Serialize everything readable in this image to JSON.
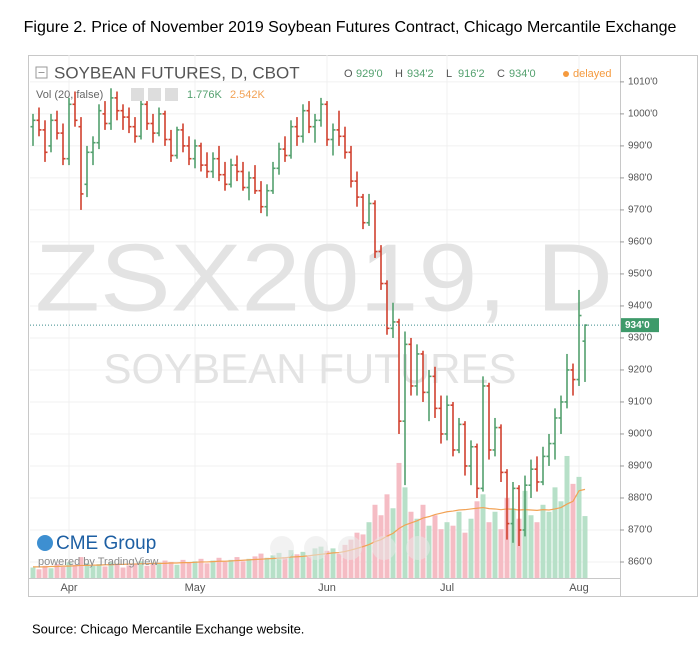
{
  "chart_data": {
    "type": "ohlc",
    "title": "Figure 2. Price of November 2019 Soybean Futures Contract, Chicago Mercantile Exchange",
    "source": "Source:  Chicago Mercantile Exchange website.",
    "symbol_title": "SOYBEAN FUTURES, D, CBOT",
    "ohlc_legend": [
      {
        "key": "O",
        "value": "929'0"
      },
      {
        "key": "H",
        "value": "934'2"
      },
      {
        "key": "L",
        "value": "916'2"
      },
      {
        "key": "C",
        "value": "934'0"
      }
    ],
    "status": "delayed",
    "volume_title": "Vol (20, false)",
    "volume_last": "1.776K",
    "volume_ma_last": "2.542K",
    "watermark": "ZSX2019, D",
    "watermark_subtitle": "SOYBEAN FUTURES",
    "logo": "CME Group",
    "powered_by": "powered by TradingView",
    "up_color": "#53a06e",
    "down_color": "#d0412f",
    "volume_up_color": "#b7e0c8",
    "volume_down_color": "#f5bcc4",
    "volume_ma_color": "#f2a255",
    "categories": [
      null,
      null,
      null,
      null,
      null,
      null,
      "Apr",
      null,
      null,
      null,
      null,
      null,
      null,
      null,
      null,
      null,
      null,
      null,
      null,
      null,
      null,
      null,
      null,
      null,
      null,
      null,
      null,
      "May",
      null,
      null,
      null,
      null,
      null,
      null,
      null,
      null,
      null,
      null,
      null,
      null,
      null,
      null,
      null,
      null,
      null,
      null,
      null,
      null,
      null,
      "Jun",
      null,
      null,
      null,
      null,
      null,
      null,
      null,
      null,
      null,
      null,
      null,
      null,
      null,
      null,
      null,
      null,
      null,
      null,
      null,
      "Jul",
      null,
      null,
      null,
      null,
      null,
      null,
      null,
      null,
      null,
      null,
      null,
      null,
      null,
      null,
      null,
      null,
      null,
      null,
      null,
      null,
      null,
      "Aug",
      null
    ],
    "open": [
      996,
      998,
      995,
      990,
      998,
      994,
      986,
      1003,
      996,
      978,
      988,
      991,
      1000,
      997,
      1005,
      1001,
      999,
      996,
      993,
      1003,
      997,
      994,
      1000,
      992,
      987,
      995,
      990,
      986,
      990,
      984,
      982,
      986,
      981,
      978,
      984,
      982,
      977,
      980,
      976,
      971,
      976,
      983,
      989,
      987,
      996,
      993,
      1001,
      996,
      998,
      1003,
      992,
      995,
      993,
      988,
      979,
      974,
      966,
      972,
      957,
      947,
      933,
      935,
      904,
      928,
      915,
      925,
      913,
      918,
      908,
      900,
      909,
      895,
      903,
      890,
      896,
      883,
      915,
      895,
      902,
      888,
      872,
      883,
      870,
      884,
      889,
      885,
      893,
      897,
      905,
      910,
      920,
      917,
      929
    ],
    "high": [
      1000,
      1002,
      998,
      1000,
      1001,
      997,
      1005,
      1007,
      999,
      990,
      993,
      1003,
      1004,
      1008,
      1007,
      1003,
      1002,
      999,
      1005,
      1004,
      1000,
      1002,
      1001,
      995,
      996,
      997,
      993,
      992,
      991,
      988,
      988,
      990,
      985,
      986,
      987,
      985,
      982,
      984,
      979,
      978,
      985,
      991,
      993,
      998,
      999,
      1003,
      1004,
      1000,
      1005,
      1004,
      997,
      1001,
      996,
      990,
      982,
      975,
      975,
      973,
      959,
      948,
      941,
      936,
      932,
      930,
      928,
      926,
      920,
      921,
      912,
      912,
      910,
      905,
      904,
      898,
      897,
      918,
      916,
      905,
      903,
      889,
      885,
      884,
      887,
      892,
      893,
      896,
      900,
      908,
      912,
      925,
      922,
      945,
      934.25
    ],
    "low": [
      990,
      993,
      985,
      988,
      992,
      984,
      984,
      996,
      970,
      974,
      984,
      989,
      995,
      995,
      998,
      995,
      994,
      991,
      992,
      995,
      991,
      993,
      990,
      985,
      986,
      988,
      984,
      983,
      982,
      980,
      980,
      979,
      976,
      977,
      979,
      976,
      973,
      975,
      969,
      968,
      975,
      981,
      985,
      986,
      990,
      991,
      994,
      991,
      996,
      990,
      987,
      990,
      986,
      977,
      971,
      964,
      965,
      955,
      945,
      931,
      930,
      900,
      884,
      912,
      912,
      910,
      904,
      905,
      897,
      898,
      893,
      894,
      887,
      884,
      880,
      882,
      892,
      893,
      885,
      867,
      866,
      865,
      868,
      880,
      882,
      884,
      890,
      892,
      900,
      908,
      912,
      915,
      916.25
    ],
    "close": [
      998,
      995,
      988,
      998,
      994,
      986,
      1003,
      998,
      975,
      988,
      991,
      1001,
      997,
      1005,
      1001,
      999,
      996,
      993,
      1003,
      997,
      994,
      1000,
      992,
      987,
      995,
      990,
      986,
      990,
      984,
      982,
      986,
      981,
      978,
      984,
      982,
      977,
      980,
      976,
      971,
      976,
      983,
      989,
      987,
      996,
      993,
      1001,
      996,
      998,
      1003,
      992,
      995,
      993,
      988,
      979,
      974,
      966,
      972,
      957,
      947,
      933,
      935,
      904,
      928,
      915,
      925,
      913,
      918,
      908,
      900,
      909,
      895,
      903,
      890,
      896,
      883,
      915,
      895,
      902,
      888,
      872,
      883,
      870,
      884,
      889,
      885,
      893,
      897,
      905,
      910,
      920,
      917,
      937,
      934
    ],
    "volume": [
      0.3,
      0.25,
      0.35,
      0.28,
      0.4,
      0.32,
      0.45,
      0.38,
      0.6,
      0.42,
      0.35,
      0.4,
      0.33,
      0.45,
      0.38,
      0.3,
      0.36,
      0.42,
      0.48,
      0.35,
      0.4,
      0.44,
      0.5,
      0.46,
      0.38,
      0.52,
      0.45,
      0.48,
      0.55,
      0.42,
      0.5,
      0.58,
      0.46,
      0.52,
      0.6,
      0.48,
      0.55,
      0.62,
      0.7,
      0.58,
      0.65,
      0.72,
      0.6,
      0.8,
      0.68,
      0.75,
      0.62,
      0.85,
      0.9,
      0.78,
      0.85,
      0.7,
      0.95,
      1.1,
      1.3,
      1.25,
      1.6,
      2.1,
      1.8,
      2.4,
      2.0,
      3.3,
      2.6,
      1.9,
      1.7,
      2.1,
      1.5,
      1.8,
      1.4,
      1.6,
      1.5,
      1.9,
      1.3,
      1.7,
      2.2,
      2.4,
      1.6,
      1.9,
      1.4,
      2.3,
      2.0,
      1.7,
      2.5,
      1.8,
      1.6,
      2.1,
      1.9,
      2.6,
      2.2,
      3.5,
      2.7,
      2.9,
      1.776
    ],
    "volume_ma": [
      0.32,
      0.32,
      0.32,
      0.33,
      0.33,
      0.34,
      0.34,
      0.35,
      0.36,
      0.36,
      0.37,
      0.37,
      0.38,
      0.38,
      0.39,
      0.39,
      0.4,
      0.4,
      0.41,
      0.41,
      0.42,
      0.42,
      0.42,
      0.43,
      0.43,
      0.44,
      0.44,
      0.45,
      0.46,
      0.46,
      0.47,
      0.48,
      0.48,
      0.49,
      0.5,
      0.51,
      0.52,
      0.53,
      0.54,
      0.55,
      0.56,
      0.57,
      0.58,
      0.6,
      0.61,
      0.62,
      0.64,
      0.66,
      0.68,
      0.7,
      0.72,
      0.73,
      0.76,
      0.8,
      0.85,
      0.9,
      0.96,
      1.04,
      1.1,
      1.2,
      1.28,
      1.42,
      1.52,
      1.58,
      1.64,
      1.72,
      1.76,
      1.82,
      1.86,
      1.9,
      1.92,
      1.95,
      1.96,
      1.98,
      2.0,
      2.02,
      1.99,
      1.98,
      1.96,
      1.98,
      1.97,
      1.95,
      1.96,
      1.95,
      1.94,
      1.96,
      1.95,
      1.98,
      2.02,
      2.12,
      2.2,
      2.5,
      2.542
    ],
    "volume_lim": [
      0,
      15
    ],
    "ylim": [
      855,
      1018.4
    ],
    "yticks": [
      {
        "value": 860,
        "label": "860'0"
      },
      {
        "value": 870,
        "label": "870'0"
      },
      {
        "value": 880,
        "label": "880'0"
      },
      {
        "value": 890,
        "label": "890'0"
      },
      {
        "value": 900,
        "label": "900'0"
      },
      {
        "value": 910,
        "label": "910'0"
      },
      {
        "value": 920,
        "label": "920'0"
      },
      {
        "value": 930,
        "label": "930'0"
      },
      {
        "value": 940,
        "label": "940'0"
      },
      {
        "value": 950,
        "label": "950'0"
      },
      {
        "value": 960,
        "label": "960'0"
      },
      {
        "value": 970,
        "label": "970'0"
      },
      {
        "value": 980,
        "label": "980'0"
      },
      {
        "value": 990,
        "label": "990'0"
      },
      {
        "value": 1000,
        "label": "1000'0"
      },
      {
        "value": 1010,
        "label": "1010'0"
      }
    ],
    "last_price": {
      "value": 934,
      "label": "934'0"
    },
    "grid": true
  }
}
